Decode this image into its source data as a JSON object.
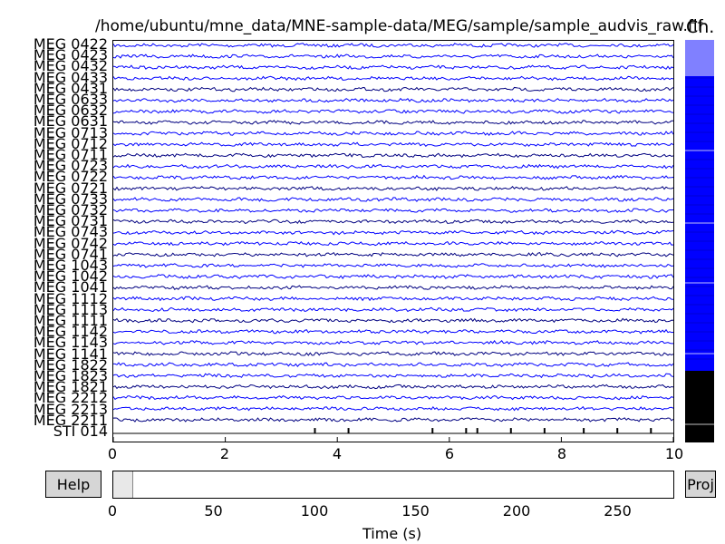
{
  "header": {
    "file_path": "/home/ubuntu/mne_data/MNE-sample-data/MEG/sample/sample_audvis_raw.fif",
    "channels_label": "Ch."
  },
  "channels": [
    {
      "name": "MEG 0422",
      "color": "#0000ff"
    },
    {
      "name": "MEG 0423",
      "color": "#0000ff"
    },
    {
      "name": "MEG 0432",
      "color": "#0000ff"
    },
    {
      "name": "MEG 0433",
      "color": "#0000ff"
    },
    {
      "name": "MEG 0431",
      "color": "#000080"
    },
    {
      "name": "MEG 0633",
      "color": "#0000ff"
    },
    {
      "name": "MEG 0632",
      "color": "#0000ff"
    },
    {
      "name": "MEG 0631",
      "color": "#000080"
    },
    {
      "name": "MEG 0713",
      "color": "#0000ff"
    },
    {
      "name": "MEG 0712",
      "color": "#0000ff"
    },
    {
      "name": "MEG 0711",
      "color": "#000080"
    },
    {
      "name": "MEG 0723",
      "color": "#0000ff"
    },
    {
      "name": "MEG 0722",
      "color": "#0000ff"
    },
    {
      "name": "MEG 0721",
      "color": "#000080"
    },
    {
      "name": "MEG 0733",
      "color": "#0000ff"
    },
    {
      "name": "MEG 0732",
      "color": "#0000ff"
    },
    {
      "name": "MEG 0731",
      "color": "#000080"
    },
    {
      "name": "MEG 0743",
      "color": "#0000ff"
    },
    {
      "name": "MEG 0742",
      "color": "#0000ff"
    },
    {
      "name": "MEG 0741",
      "color": "#000080"
    },
    {
      "name": "MEG 1043",
      "color": "#0000ff"
    },
    {
      "name": "MEG 1042",
      "color": "#0000ff"
    },
    {
      "name": "MEG 1041",
      "color": "#000080"
    },
    {
      "name": "MEG 1112",
      "color": "#0000ff"
    },
    {
      "name": "MEG 1113",
      "color": "#0000ff"
    },
    {
      "name": "MEG 1111",
      "color": "#000080"
    },
    {
      "name": "MEG 1142",
      "color": "#0000ff"
    },
    {
      "name": "MEG 1143",
      "color": "#0000ff"
    },
    {
      "name": "MEG 1141",
      "color": "#000080"
    },
    {
      "name": "MEG 1822",
      "color": "#0000ff"
    },
    {
      "name": "MEG 1823",
      "color": "#0000ff"
    },
    {
      "name": "MEG 1821",
      "color": "#000080"
    },
    {
      "name": "MEG 2212",
      "color": "#0000ff"
    },
    {
      "name": "MEG 2213",
      "color": "#0000ff"
    },
    {
      "name": "MEG 2211",
      "color": "#000080"
    },
    {
      "name": "STI 014",
      "color": "#000000"
    }
  ],
  "stim_events_s": [
    3.6,
    4.2,
    5.7,
    6.3,
    6.5,
    7.1,
    7.7,
    8.4,
    9.0,
    9.6
  ],
  "main_axis": {
    "xlim": [
      0,
      10
    ],
    "ticks": [
      "0",
      "2",
      "4",
      "6",
      "8",
      "10"
    ]
  },
  "channel_scrollbar": {
    "blocks": [
      {
        "color": "#8080ff"
      },
      {
        "color": "#0000ff"
      },
      {
        "color": "#0000ff"
      },
      {
        "color": "#0000ff"
      },
      {
        "color": "#000000"
      }
    ]
  },
  "time_scrollbar": {
    "xlim": [
      0,
      278
    ],
    "window": [
      0,
      10
    ],
    "ticks": [
      "0",
      "50",
      "100",
      "150",
      "200",
      "250"
    ],
    "xlabel": "Time (s)"
  },
  "buttons": {
    "help_label": "Help",
    "proj_label": "Proj"
  }
}
